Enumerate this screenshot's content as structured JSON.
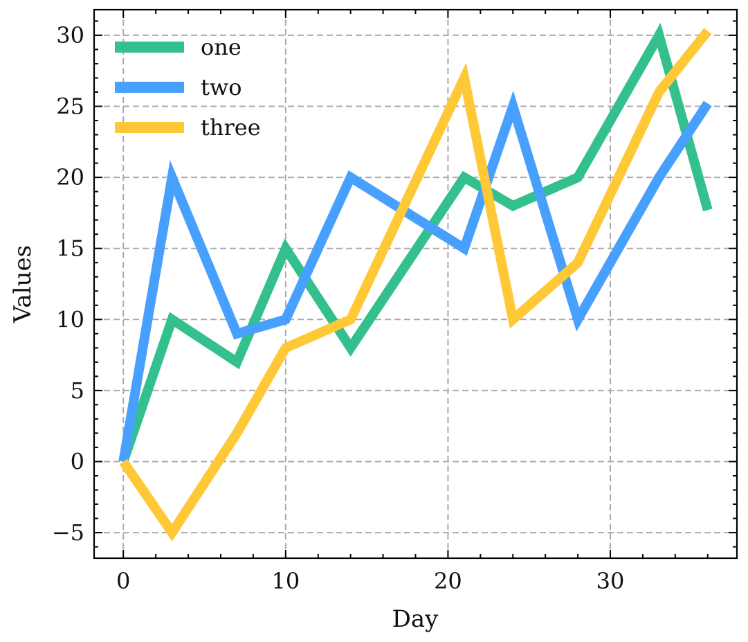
{
  "chart_data": {
    "type": "line",
    "xlabel": "Day",
    "ylabel": "Values",
    "xlim": [
      -1.8,
      37.8
    ],
    "ylim": [
      -6.8,
      31.8
    ],
    "xticks": [
      0,
      10,
      20,
      30
    ],
    "yticks": [
      -5,
      0,
      5,
      10,
      15,
      20,
      25,
      30
    ],
    "xtick_labels": [
      "0",
      "10",
      "20",
      "30"
    ],
    "ytick_labels": [
      "−5",
      "0",
      "5",
      "10",
      "15",
      "20",
      "25",
      "30"
    ],
    "grid": true,
    "legend_position": "top-left",
    "series": [
      {
        "name": "one",
        "color": "#33c08d",
        "x": [
          0,
          3,
          7,
          10,
          14,
          21,
          24,
          28,
          33,
          36
        ],
        "y": [
          0,
          10,
          7,
          15,
          8,
          20,
          18,
          20,
          30,
          17.7
        ]
      },
      {
        "name": "two",
        "color": "#479ffe",
        "x": [
          0,
          3,
          7,
          10,
          14,
          21,
          24,
          28,
          33,
          36
        ],
        "y": [
          0,
          20,
          9,
          10,
          20,
          15,
          25,
          10,
          20,
          25.2
        ]
      },
      {
        "name": "three",
        "color": "#ffc837",
        "x": [
          0,
          3,
          7,
          10,
          14,
          21,
          24,
          28,
          33,
          36
        ],
        "y": [
          0,
          -5,
          2,
          8,
          10,
          27,
          10,
          14,
          26,
          30.3
        ]
      }
    ]
  }
}
